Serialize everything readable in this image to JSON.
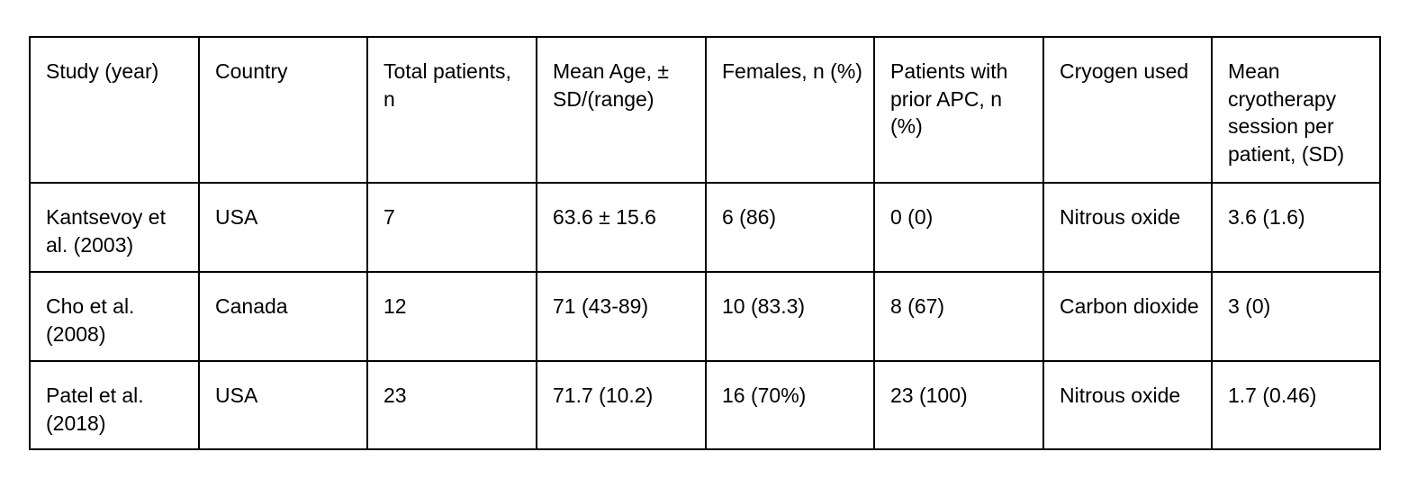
{
  "table": {
    "headers": [
      "Study (year)",
      "Country",
      "Total patients, n",
      "Mean Age, ± SD/(range)",
      "Females, n (%)",
      "Patients with prior APC, n (%)",
      "Cryogen used",
      "Mean cryotherapy session per patient, (SD)"
    ],
    "rows": [
      [
        "Kantsevoy et al. (2003)",
        "USA",
        "7",
        "63.6 ± 15.6",
        "6 (86)",
        "0 (0)",
        "Nitrous oxide",
        "3.6 (1.6)"
      ],
      [
        "Cho et al. (2008)",
        "Canada",
        "12",
        "71 (43-89)",
        "10 (83.3)",
        "8 (67)",
        "Carbon dioxide",
        "3 (0)"
      ],
      [
        "Patel et al. (2018)",
        "USA",
        "23",
        "71.7 (10.2)",
        "16 (70%)",
        "23 (100)",
        "Nitrous oxide",
        "1.7 (0.46)"
      ]
    ]
  }
}
